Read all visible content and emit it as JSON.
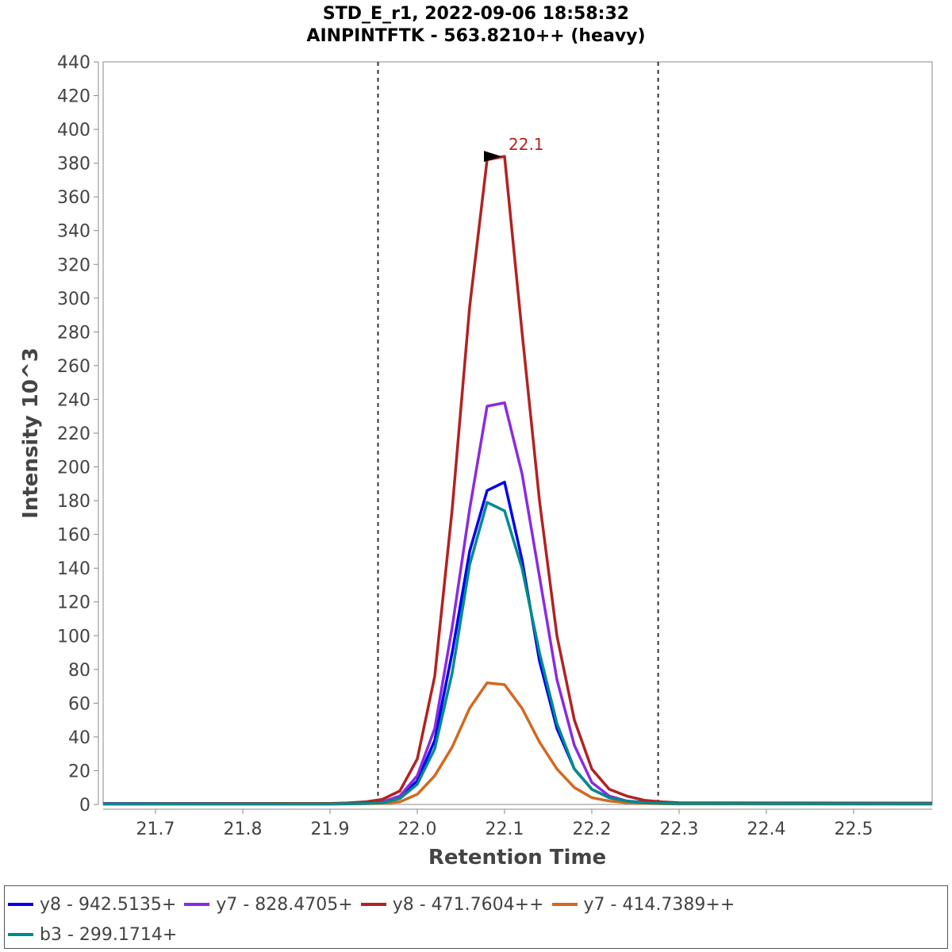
{
  "chart_data": {
    "type": "line",
    "title": "STD_E_r1, 2022-09-06 18:58:32",
    "subtitle": "AINPINTFTK - 563.8210++ (heavy)",
    "xlabel": "Retention Time",
    "ylabel": "Intensity 10^3",
    "xlim": [
      21.64,
      22.59
    ],
    "ylim": [
      0,
      440
    ],
    "xticks": [
      "21.7",
      "21.8",
      "21.9",
      "22.0",
      "22.1",
      "22.2",
      "22.3",
      "22.4",
      "22.5"
    ],
    "yticks": [
      "0",
      "20",
      "40",
      "60",
      "80",
      "100",
      "120",
      "140",
      "160",
      "180",
      "200",
      "220",
      "240",
      "260",
      "280",
      "300",
      "320",
      "340",
      "360",
      "380",
      "400",
      "420",
      "440"
    ],
    "grid": false,
    "legend_position": "bottom",
    "boundaries": [
      21.955,
      22.276
    ],
    "peak_annotation": {
      "x": 22.1,
      "y": 384,
      "label": "22.1",
      "color": "#b22222"
    },
    "x": [
      21.64,
      21.9,
      21.92,
      21.94,
      21.96,
      21.98,
      22.0,
      22.02,
      22.04,
      22.06,
      22.08,
      22.1,
      22.12,
      22.14,
      22.16,
      22.18,
      22.2,
      22.22,
      22.24,
      22.26,
      22.28,
      22.3,
      22.59
    ],
    "series": [
      {
        "name": "y8 - 942.5135+",
        "color": "#0000ee",
        "values": [
          0.5,
          0.5,
          0.6,
          0.8,
          1.2,
          4,
          14,
          38,
          90,
          150,
          186,
          191,
          145,
          85,
          45,
          21,
          9,
          4,
          2,
          1.2,
          0.8,
          0.6,
          0.5
        ]
      },
      {
        "name": "y7 - 828.4705+",
        "color": "#8a2be2",
        "values": [
          0.3,
          0.4,
          0.5,
          0.7,
          1.5,
          5,
          17,
          45,
          105,
          175,
          236,
          238,
          196,
          135,
          74,
          35,
          13,
          5,
          2,
          1,
          0.7,
          0.5,
          0.4
        ]
      },
      {
        "name": "y8 - 471.7604++",
        "color": "#b22222",
        "values": [
          0.4,
          0.6,
          0.9,
          1.5,
          3,
          8,
          27,
          76,
          175,
          295,
          382,
          384,
          280,
          180,
          100,
          50,
          21,
          9,
          5,
          2.5,
          1.5,
          1,
          0.8
        ]
      },
      {
        "name": "y7 - 414.7389++",
        "color": "#d2691e",
        "values": [
          0.2,
          0.2,
          0.3,
          0.4,
          0.6,
          1.5,
          6,
          17,
          34,
          57,
          72,
          71,
          57,
          37,
          21,
          10,
          4,
          2,
          1,
          0.6,
          0.4,
          0.3,
          0.2
        ]
      },
      {
        "name": "b3 - 299.1714+",
        "color": "#008b8b",
        "values": [
          0.3,
          0.3,
          0.4,
          0.6,
          1,
          3.5,
          12,
          33,
          78,
          142,
          179,
          174,
          140,
          90,
          48,
          21,
          9,
          4,
          2,
          1,
          0.7,
          0.5,
          0.4
        ]
      }
    ]
  }
}
